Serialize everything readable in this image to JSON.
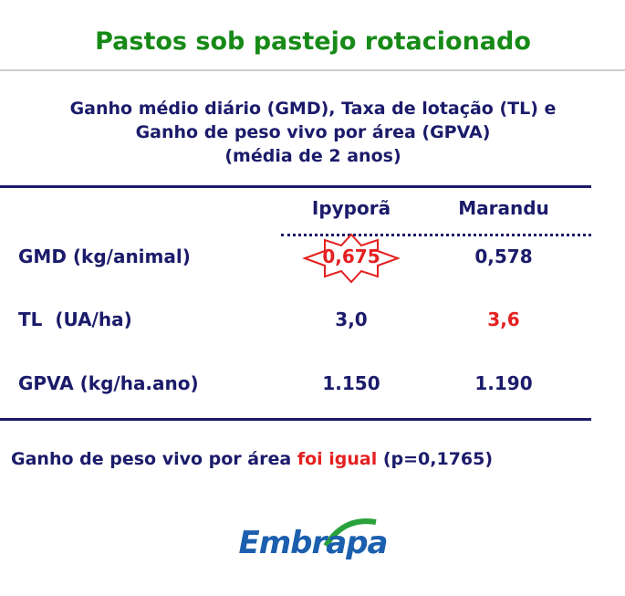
{
  "header": {
    "title": "Pastos sob pastejo rotacionado",
    "subtitle": [
      "Ganho médio diário (GMD), Taxa de lotação (TL) e",
      "Ganho de peso vivo por área (GPVA)",
      "(média de 2 anos)"
    ]
  },
  "table": {
    "columns": [
      "Ipyporã",
      "Marandu"
    ],
    "rows": [
      [
        "GMD (kg/animal)",
        "0,675",
        "0,578"
      ],
      [
        "TL  (UA/ha)",
        "3,0",
        "3,6"
      ],
      [
        "GPVA (kg/ha.ano)",
        "1.150",
        "1.190"
      ]
    ]
  },
  "conclusion": {
    "parts": [
      "Ganho de peso vivo por área ",
      "foi igual",
      " (p=0,1765)"
    ]
  },
  "logo": {
    "text": "Embrapa"
  }
}
